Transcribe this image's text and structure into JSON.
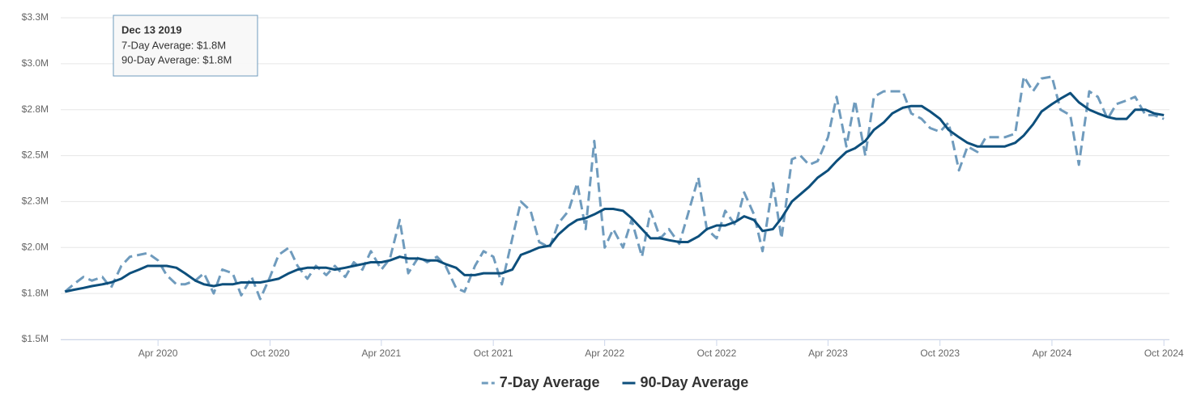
{
  "chart_data": {
    "type": "line",
    "x": [
      "2019-11-01",
      "2019-11-15",
      "2019-12-01",
      "2019-12-15",
      "2020-01-01",
      "2020-01-15",
      "2020-02-01",
      "2020-02-15",
      "2020-03-01",
      "2020-03-15",
      "2020-04-01",
      "2020-04-15",
      "2020-05-01",
      "2020-05-15",
      "2020-06-01",
      "2020-06-15",
      "2020-07-01",
      "2020-07-15",
      "2020-08-01",
      "2020-08-15",
      "2020-09-01",
      "2020-09-15",
      "2020-10-01",
      "2020-10-15",
      "2020-11-01",
      "2020-11-15",
      "2020-12-01",
      "2020-12-15",
      "2021-01-01",
      "2021-01-15",
      "2021-02-01",
      "2021-02-15",
      "2021-03-01",
      "2021-03-15",
      "2021-04-01",
      "2021-04-15",
      "2021-05-01",
      "2021-05-15",
      "2021-06-01",
      "2021-06-15",
      "2021-07-01",
      "2021-07-15",
      "2021-08-01",
      "2021-08-15",
      "2021-09-01",
      "2021-09-15",
      "2021-10-01",
      "2021-10-15",
      "2021-11-01",
      "2021-11-15",
      "2021-12-01",
      "2021-12-15",
      "2022-01-01",
      "2022-01-15",
      "2022-02-01",
      "2022-02-15",
      "2022-03-01",
      "2022-03-15",
      "2022-04-01",
      "2022-04-15",
      "2022-05-01",
      "2022-05-15",
      "2022-06-01",
      "2022-06-15",
      "2022-07-01",
      "2022-07-15",
      "2022-08-01",
      "2022-08-15",
      "2022-09-01",
      "2022-09-15",
      "2022-10-01",
      "2022-10-15",
      "2022-11-01",
      "2022-11-15",
      "2022-12-01",
      "2022-12-15",
      "2023-01-01",
      "2023-01-15",
      "2023-02-01",
      "2023-02-15",
      "2023-03-01",
      "2023-03-15",
      "2023-04-01",
      "2023-04-15",
      "2023-05-01",
      "2023-05-15",
      "2023-06-01",
      "2023-06-15",
      "2023-07-01",
      "2023-07-15",
      "2023-08-01",
      "2023-08-15",
      "2023-09-01",
      "2023-09-15",
      "2023-10-01",
      "2023-10-15",
      "2023-11-01",
      "2023-11-15",
      "2023-12-01",
      "2023-12-15",
      "2024-01-01",
      "2024-01-15",
      "2024-02-01",
      "2024-02-15",
      "2024-03-01",
      "2024-03-15",
      "2024-04-01",
      "2024-04-15",
      "2024-05-01",
      "2024-05-15",
      "2024-06-01",
      "2024-06-15",
      "2024-07-01",
      "2024-07-15",
      "2024-08-01",
      "2024-08-15",
      "2024-09-01",
      "2024-09-15",
      "2024-10-01"
    ],
    "series": [
      {
        "name": "7-Day Average",
        "color": "#6f9bbd",
        "dashed": true,
        "values": [
          1760000,
          1800000,
          1840000,
          1820000,
          1840000,
          1780000,
          1900000,
          1950000,
          1960000,
          1970000,
          1930000,
          1850000,
          1800000,
          1800000,
          1820000,
          1860000,
          1750000,
          1880000,
          1860000,
          1740000,
          1840000,
          1720000,
          1840000,
          1960000,
          2000000,
          1900000,
          1830000,
          1900000,
          1850000,
          1900000,
          1840000,
          1920000,
          1880000,
          1980000,
          1880000,
          1940000,
          2150000,
          1860000,
          1950000,
          1920000,
          1950000,
          1900000,
          1780000,
          1760000,
          1900000,
          1980000,
          1950000,
          1800000,
          2050000,
          2250000,
          2200000,
          2030000,
          2000000,
          2130000,
          2200000,
          2350000,
          2100000,
          2580000,
          2000000,
          2100000,
          2000000,
          2150000,
          1950000,
          2200000,
          2050000,
          2100000,
          2020000,
          2180000,
          2380000,
          2100000,
          2050000,
          2200000,
          2120000,
          2300000,
          2180000,
          1980000,
          2350000,
          2050000,
          2480000,
          2500000,
          2450000,
          2470000,
          2600000,
          2820000,
          2550000,
          2800000,
          2500000,
          2820000,
          2850000,
          2850000,
          2850000,
          2730000,
          2700000,
          2650000,
          2630000,
          2680000,
          2420000,
          2550000,
          2520000,
          2600000,
          2600000,
          2600000,
          2620000,
          2930000,
          2850000,
          2920000,
          2930000,
          2750000,
          2720000,
          2450000,
          2850000,
          2820000,
          2700000,
          2780000,
          2800000,
          2820000,
          2720000,
          2720000,
          2700000
        ]
      },
      {
        "name": "90-Day Average",
        "color": "#0d4f7c",
        "dashed": false,
        "values": [
          1760000,
          1770000,
          1780000,
          1790000,
          1800000,
          1810000,
          1830000,
          1860000,
          1880000,
          1900000,
          1900000,
          1900000,
          1890000,
          1860000,
          1820000,
          1800000,
          1790000,
          1800000,
          1800000,
          1810000,
          1810000,
          1810000,
          1820000,
          1830000,
          1860000,
          1880000,
          1890000,
          1890000,
          1890000,
          1880000,
          1890000,
          1900000,
          1910000,
          1920000,
          1920000,
          1930000,
          1950000,
          1940000,
          1940000,
          1930000,
          1930000,
          1910000,
          1890000,
          1850000,
          1850000,
          1860000,
          1860000,
          1860000,
          1880000,
          1960000,
          1980000,
          2000000,
          2010000,
          2070000,
          2120000,
          2150000,
          2160000,
          2180000,
          2210000,
          2210000,
          2200000,
          2160000,
          2100000,
          2050000,
          2050000,
          2040000,
          2030000,
          2030000,
          2060000,
          2100000,
          2120000,
          2120000,
          2140000,
          2170000,
          2150000,
          2090000,
          2100000,
          2160000,
          2250000,
          2290000,
          2330000,
          2380000,
          2420000,
          2470000,
          2520000,
          2540000,
          2580000,
          2640000,
          2680000,
          2730000,
          2760000,
          2770000,
          2770000,
          2740000,
          2700000,
          2640000,
          2600000,
          2570000,
          2550000,
          2550000,
          2550000,
          2550000,
          2570000,
          2610000,
          2670000,
          2740000,
          2780000,
          2810000,
          2840000,
          2790000,
          2750000,
          2730000,
          2710000,
          2700000,
          2700000,
          2750000,
          2750000,
          2730000,
          2720000
        ]
      }
    ],
    "xlim": [
      "2019-10-25",
      "2024-10-10"
    ],
    "xticks": [
      {
        "value": "2020-04-01",
        "label": "Apr 2020"
      },
      {
        "value": "2020-10-01",
        "label": "Oct 2020"
      },
      {
        "value": "2021-04-01",
        "label": "Apr 2021"
      },
      {
        "value": "2021-10-01",
        "label": "Oct 2021"
      },
      {
        "value": "2022-04-01",
        "label": "Apr 2022"
      },
      {
        "value": "2022-10-01",
        "label": "Oct 2022"
      },
      {
        "value": "2023-04-01",
        "label": "Apr 2023"
      },
      {
        "value": "2023-10-01",
        "label": "Oct 2023"
      },
      {
        "value": "2024-04-01",
        "label": "Apr 2024"
      },
      {
        "value": "2024-10-01",
        "label": "Oct 2024"
      }
    ],
    "ylim": [
      1500000,
      3250000
    ],
    "yticks": [
      {
        "value": 1500000,
        "label": "$1.5M"
      },
      {
        "value": 1750000,
        "label": "$1.8M"
      },
      {
        "value": 2000000,
        "label": "$2.0M"
      },
      {
        "value": 2250000,
        "label": "$2.3M"
      },
      {
        "value": 2500000,
        "label": "$2.5M"
      },
      {
        "value": 2750000,
        "label": "$2.8M"
      },
      {
        "value": 3000000,
        "label": "$3.0M"
      },
      {
        "value": 3250000,
        "label": "$3.3M"
      }
    ],
    "grid": true,
    "legend": "bottom",
    "tooltip": {
      "title": "Dec 13 2019",
      "lines": [
        "7-Day Average: $1.8M",
        "90-Day Average: $1.8M"
      ]
    }
  }
}
